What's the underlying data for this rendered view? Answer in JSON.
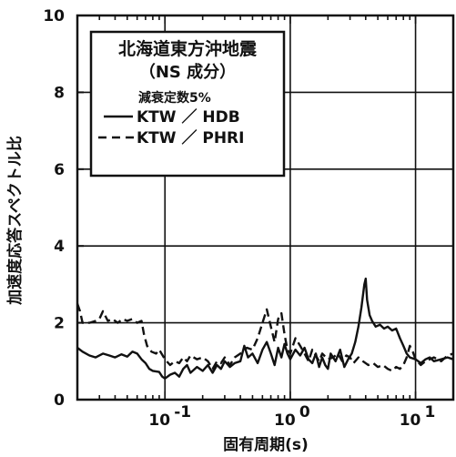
{
  "chart_data": {
    "type": "line",
    "title": "北海道東方沖地震",
    "subtitle": "（NS 成分）",
    "damping_note": "減衰定数5%",
    "xlabel": "固有周期(s)",
    "ylabel": "加速度応答スペクトル比",
    "xscale": "log",
    "xlim": [
      0.02,
      20
    ],
    "ylim": [
      0,
      10
    ],
    "grid": true,
    "legend_position": "top-left",
    "x_ticks": [
      {
        "value": 0.1,
        "base": "10",
        "exp": "-1"
      },
      {
        "value": 1,
        "base": "10",
        "exp": "0"
      },
      {
        "value": 10,
        "base": "10",
        "exp": "1"
      }
    ],
    "y_ticks": [
      "0",
      "2",
      "4",
      "6",
      "8",
      "10"
    ],
    "series": [
      {
        "name": "KTW ／ HDB",
        "style": "solid",
        "points": [
          [
            0.02,
            1.35
          ],
          [
            0.022,
            1.25
          ],
          [
            0.025,
            1.15
          ],
          [
            0.028,
            1.1
          ],
          [
            0.032,
            1.2
          ],
          [
            0.036,
            1.15
          ],
          [
            0.04,
            1.1
          ],
          [
            0.045,
            1.18
          ],
          [
            0.05,
            1.12
          ],
          [
            0.055,
            1.25
          ],
          [
            0.06,
            1.2
          ],
          [
            0.065,
            1.05
          ],
          [
            0.07,
            0.95
          ],
          [
            0.075,
            0.8
          ],
          [
            0.08,
            0.75
          ],
          [
            0.09,
            0.72
          ],
          [
            0.095,
            0.6
          ],
          [
            0.1,
            0.55
          ],
          [
            0.11,
            0.65
          ],
          [
            0.12,
            0.7
          ],
          [
            0.13,
            0.6
          ],
          [
            0.14,
            0.8
          ],
          [
            0.15,
            0.9
          ],
          [
            0.16,
            0.7
          ],
          [
            0.18,
            0.85
          ],
          [
            0.2,
            0.75
          ],
          [
            0.22,
            0.9
          ],
          [
            0.24,
            0.7
          ],
          [
            0.26,
            0.9
          ],
          [
            0.28,
            0.8
          ],
          [
            0.3,
            1.0
          ],
          [
            0.33,
            0.85
          ],
          [
            0.36,
            0.95
          ],
          [
            0.4,
            1.0
          ],
          [
            0.43,
            1.4
          ],
          [
            0.46,
            1.1
          ],
          [
            0.5,
            1.2
          ],
          [
            0.55,
            0.95
          ],
          [
            0.6,
            1.3
          ],
          [
            0.65,
            1.5
          ],
          [
            0.7,
            1.2
          ],
          [
            0.75,
            0.9
          ],
          [
            0.8,
            1.35
          ],
          [
            0.85,
            1.1
          ],
          [
            0.9,
            1.45
          ],
          [
            0.95,
            1.2
          ],
          [
            1.0,
            1.05
          ],
          [
            1.1,
            1.3
          ],
          [
            1.2,
            1.15
          ],
          [
            1.3,
            1.35
          ],
          [
            1.4,
            1.05
          ],
          [
            1.5,
            0.95
          ],
          [
            1.6,
            1.2
          ],
          [
            1.7,
            0.85
          ],
          [
            1.8,
            1.1
          ],
          [
            1.9,
            0.9
          ],
          [
            2.0,
            0.8
          ],
          [
            2.1,
            1.2
          ],
          [
            2.3,
            1.0
          ],
          [
            2.5,
            1.3
          ],
          [
            2.7,
            0.85
          ],
          [
            2.9,
            1.05
          ],
          [
            3.1,
            1.2
          ],
          [
            3.3,
            1.5
          ],
          [
            3.5,
            1.9
          ],
          [
            3.7,
            2.4
          ],
          [
            3.9,
            3.0
          ],
          [
            4.0,
            3.15
          ],
          [
            4.1,
            2.6
          ],
          [
            4.3,
            2.2
          ],
          [
            4.5,
            2.05
          ],
          [
            4.8,
            1.9
          ],
          [
            5.2,
            1.95
          ],
          [
            5.6,
            1.85
          ],
          [
            6.0,
            1.9
          ],
          [
            6.5,
            1.8
          ],
          [
            7.0,
            1.85
          ],
          [
            7.5,
            1.6
          ],
          [
            8.0,
            1.4
          ],
          [
            8.5,
            1.2
          ],
          [
            9.0,
            1.1
          ],
          [
            10.0,
            1.05
          ],
          [
            11.0,
            0.95
          ],
          [
            12.0,
            1.05
          ],
          [
            13.0,
            1.1
          ],
          [
            14.0,
            1.0
          ],
          [
            16.0,
            1.05
          ],
          [
            18.0,
            1.1
          ],
          [
            20.0,
            1.05
          ]
        ]
      },
      {
        "name": "KTW ／ PHRI",
        "style": "dashed",
        "points": [
          [
            0.02,
            2.5
          ],
          [
            0.021,
            2.3
          ],
          [
            0.022,
            2.0
          ],
          [
            0.025,
            2.0
          ],
          [
            0.028,
            2.05
          ],
          [
            0.03,
            2.1
          ],
          [
            0.032,
            2.3
          ],
          [
            0.035,
            2.05
          ],
          [
            0.038,
            2.1
          ],
          [
            0.042,
            2.0
          ],
          [
            0.046,
            2.1
          ],
          [
            0.05,
            2.05
          ],
          [
            0.055,
            2.1
          ],
          [
            0.06,
            2.0
          ],
          [
            0.065,
            2.05
          ],
          [
            0.068,
            1.7
          ],
          [
            0.072,
            1.4
          ],
          [
            0.078,
            1.25
          ],
          [
            0.085,
            1.2
          ],
          [
            0.09,
            1.3
          ],
          [
            0.1,
            1.05
          ],
          [
            0.11,
            0.9
          ],
          [
            0.12,
            1.0
          ],
          [
            0.13,
            0.95
          ],
          [
            0.14,
            1.1
          ],
          [
            0.15,
            1.0
          ],
          [
            0.16,
            1.15
          ],
          [
            0.18,
            1.05
          ],
          [
            0.2,
            1.1
          ],
          [
            0.22,
            1.0
          ],
          [
            0.24,
            0.8
          ],
          [
            0.26,
            1.0
          ],
          [
            0.28,
            0.95
          ],
          [
            0.3,
            1.1
          ],
          [
            0.33,
            0.9
          ],
          [
            0.36,
            1.1
          ],
          [
            0.4,
            1.2
          ],
          [
            0.45,
            1.35
          ],
          [
            0.5,
            1.3
          ],
          [
            0.55,
            1.6
          ],
          [
            0.6,
            2.0
          ],
          [
            0.65,
            2.35
          ],
          [
            0.7,
            1.9
          ],
          [
            0.75,
            1.5
          ],
          [
            0.8,
            2.1
          ],
          [
            0.85,
            2.25
          ],
          [
            0.9,
            1.7
          ],
          [
            0.95,
            1.3
          ],
          [
            1.0,
            1.2
          ],
          [
            1.1,
            1.6
          ],
          [
            1.2,
            1.4
          ],
          [
            1.3,
            1.2
          ],
          [
            1.4,
            1.0
          ],
          [
            1.5,
            1.3
          ],
          [
            1.6,
            1.15
          ],
          [
            1.7,
            1.0
          ],
          [
            1.8,
            1.2
          ],
          [
            2.0,
            1.05
          ],
          [
            2.2,
            1.1
          ],
          [
            2.4,
            1.2
          ],
          [
            2.6,
            1.0
          ],
          [
            2.8,
            1.15
          ],
          [
            3.0,
            1.1
          ],
          [
            3.2,
            0.95
          ],
          [
            3.5,
            1.1
          ],
          [
            3.8,
            1.0
          ],
          [
            4.2,
            0.9
          ],
          [
            4.6,
            0.95
          ],
          [
            5.0,
            0.85
          ],
          [
            5.5,
            0.9
          ],
          [
            6.0,
            0.8
          ],
          [
            6.5,
            0.75
          ],
          [
            7.0,
            0.85
          ],
          [
            7.5,
            0.8
          ],
          [
            8.0,
            0.9
          ],
          [
            8.5,
            1.1
          ],
          [
            9.0,
            1.4
          ],
          [
            9.5,
            1.25
          ],
          [
            10.0,
            1.05
          ],
          [
            11.0,
            0.9
          ],
          [
            12.0,
            1.0
          ],
          [
            13.0,
            1.05
          ],
          [
            14.0,
            1.1
          ],
          [
            16.0,
            1.0
          ],
          [
            18.0,
            1.15
          ],
          [
            20.0,
            1.2
          ]
        ]
      }
    ]
  }
}
